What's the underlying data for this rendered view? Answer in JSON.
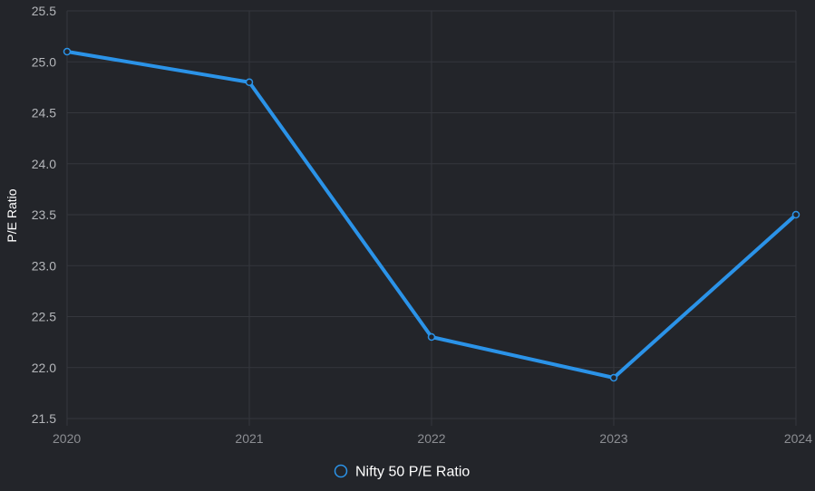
{
  "chart_data": {
    "type": "line",
    "title": "",
    "xlabel": "",
    "ylabel": "P/E Ratio",
    "categories": [
      "2020",
      "2021",
      "2022",
      "2023",
      "2024"
    ],
    "series": [
      {
        "name": "Nifty 50 P/E Ratio",
        "values": [
          25.1,
          24.8,
          22.3,
          21.9,
          23.5
        ],
        "color": "#2b93e8"
      }
    ],
    "ylim": [
      21.5,
      25.5
    ],
    "yticks": [
      "21.5",
      "22.0",
      "22.5",
      "23.0",
      "23.5",
      "24.0",
      "24.5",
      "25.0",
      "25.5"
    ],
    "grid": true,
    "legend_position": "bottom"
  },
  "theme": {
    "background": "#23252a",
    "grid_color": "#35373d",
    "x_tick_color": "#8c8e93",
    "y_tick_color": "#b4b6ba",
    "axis_title_color": "#ffffff",
    "legend_text_color": "#ffffff"
  }
}
